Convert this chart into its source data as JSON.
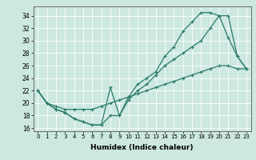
{
  "xlabel": "Humidex (Indice chaleur)",
  "ylabel": "",
  "xlim": [
    -0.5,
    23.5
  ],
  "ylim": [
    15.5,
    35.5
  ],
  "xticks": [
    0,
    1,
    2,
    3,
    4,
    5,
    6,
    7,
    8,
    9,
    10,
    11,
    12,
    13,
    14,
    15,
    16,
    17,
    18,
    19,
    20,
    21,
    22,
    23
  ],
  "yticks": [
    16,
    18,
    20,
    22,
    24,
    26,
    28,
    30,
    32,
    34
  ],
  "bg_color": "#cce8e0",
  "line_color": "#2a7a6a",
  "line1_x": [
    0,
    1,
    2,
    3,
    4,
    5,
    6,
    7,
    8,
    9,
    10,
    11,
    12,
    13,
    14,
    15,
    16,
    17,
    18,
    19,
    20,
    21,
    22,
    23
  ],
  "line1_y": [
    22,
    20,
    19,
    18.5,
    17.5,
    17,
    16.5,
    16.5,
    22.5,
    18,
    20.5,
    22,
    23,
    24.5,
    26,
    27,
    28,
    29,
    30,
    32,
    34,
    34,
    27.5,
    25.5
  ],
  "line2_x": [
    0,
    1,
    2,
    3,
    4,
    5,
    6,
    7,
    8,
    9,
    10,
    11,
    12,
    13,
    14,
    15,
    16,
    17,
    18,
    19,
    20,
    21,
    22,
    23
  ],
  "line2_y": [
    22,
    20,
    19,
    18.5,
    17.5,
    17,
    16.5,
    16.5,
    18,
    18,
    21,
    23,
    24,
    25,
    27.5,
    29,
    31.5,
    33,
    34.5,
    34.5,
    34,
    30.5,
    27.5,
    25.5
  ],
  "line3_x": [
    0,
    1,
    2,
    3,
    4,
    5,
    6,
    7,
    8,
    9,
    10,
    11,
    12,
    13,
    14,
    15,
    16,
    17,
    18,
    19,
    20,
    21,
    22,
    23
  ],
  "line3_y": [
    22,
    20,
    19.5,
    19,
    19,
    19,
    19,
    19.5,
    20,
    20.5,
    21,
    21.5,
    22,
    22.5,
    23,
    23.5,
    24,
    24.5,
    25,
    25.5,
    26,
    26,
    25.5,
    25.5
  ],
  "xtick_fontsize": 5.0,
  "ytick_fontsize": 5.5,
  "xlabel_fontsize": 6.5
}
